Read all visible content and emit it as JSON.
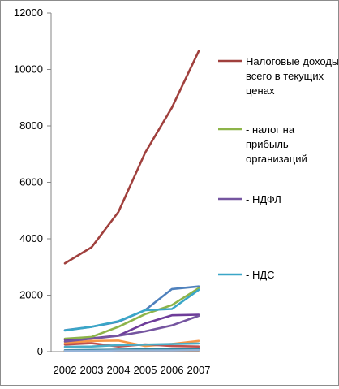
{
  "chart_data": {
    "type": "line",
    "title": "",
    "xlabel": "",
    "ylabel": "",
    "x": [
      "2002",
      "2003",
      "2004",
      "2005",
      "2006",
      "2007"
    ],
    "ylim": [
      0,
      12000
    ],
    "y_ticks": [
      "0",
      "2000",
      "4000",
      "6000",
      "8000",
      "10000",
      "12000"
    ],
    "grid": false,
    "legend_position": "right",
    "series": [
      {
        "name": "Налоговые доходы всего в текущих ценах",
        "color": "#a0403d",
        "values": [
          3130,
          3700,
          4950,
          7050,
          8650,
          10650
        ]
      },
      {
        "name": "- налог на прибыль организаций",
        "color": "#8db449",
        "values": [
          460,
          520,
          880,
          1330,
          1650,
          2250
        ]
      },
      {
        "name": "- НДФЛ",
        "color": "#7555a0",
        "values": [
          360,
          460,
          560,
          720,
          930,
          1270
        ]
      },
      {
        "name": "- НДС",
        "color": "#3aa6c7",
        "values": [
          750,
          880,
          1080,
          1470,
          1510,
          2190
        ]
      },
      {
        "name": "",
        "color": "#4f81bd",
        "values": [
          760,
          880,
          1060,
          1470,
          2220,
          2310
        ]
      },
      {
        "name": "",
        "color": "#6e3d9a",
        "values": [
          420,
          470,
          570,
          1000,
          1290,
          1310
        ]
      },
      {
        "name": "",
        "color": "#f79646",
        "values": [
          310,
          380,
          390,
          200,
          270,
          380
        ]
      },
      {
        "name": "",
        "color": "#c0504d",
        "values": [
          250,
          300,
          180,
          260,
          200,
          180
        ]
      },
      {
        "name": "",
        "color": "#4bacc6",
        "values": [
          170,
          180,
          230,
          250,
          270,
          290
        ]
      },
      {
        "name": "",
        "color": "#31859c",
        "values": [
          50,
          60,
          70,
          80,
          90,
          100
        ]
      },
      {
        "name": "",
        "color": "#e46c0a",
        "values": [
          10,
          10,
          20,
          20,
          30,
          40
        ]
      },
      {
        "name": "",
        "color": "#95b3d7",
        "values": [
          30,
          30,
          40,
          40,
          40,
          50
        ]
      }
    ]
  }
}
